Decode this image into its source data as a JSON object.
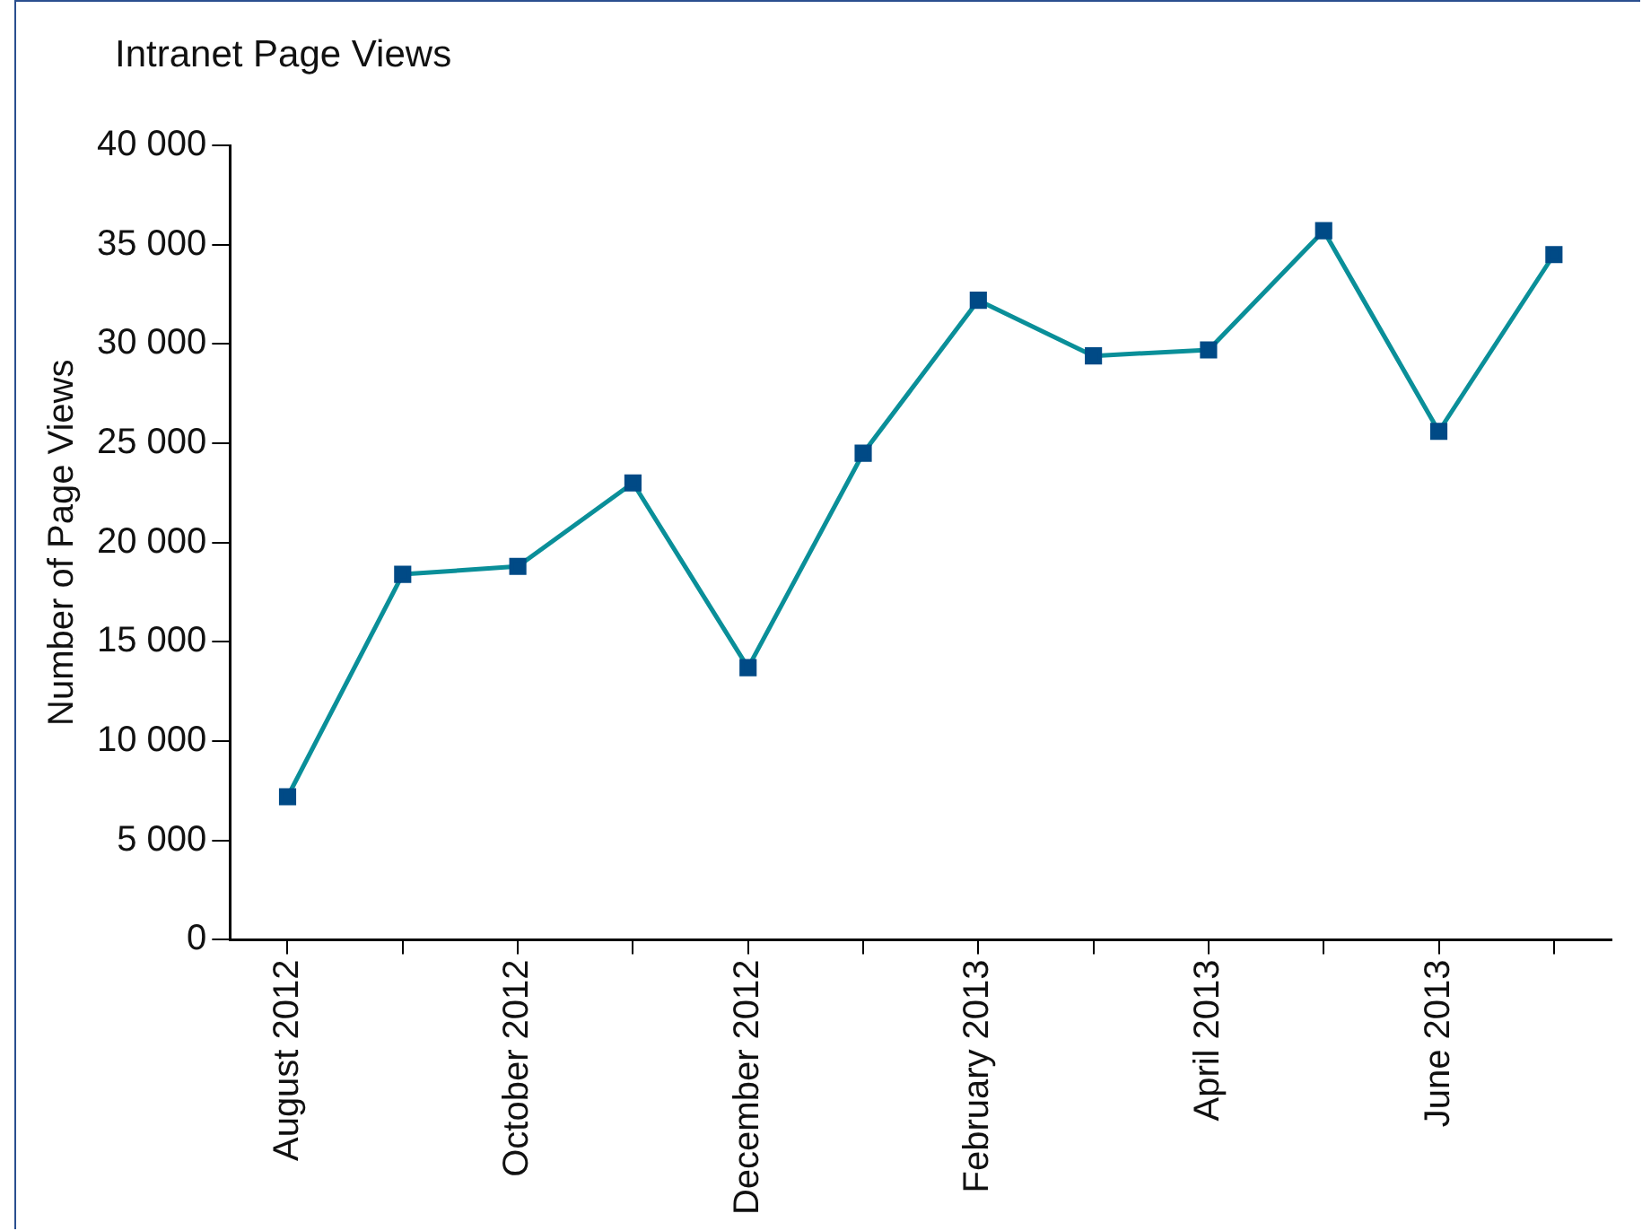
{
  "chart_data": {
    "type": "line",
    "title": "Intranet Page Views",
    "ylabel": "Number of Page Views",
    "categories": [
      "August 2012",
      null,
      "October 2012",
      null,
      "December 2012",
      null,
      "February 2013",
      null,
      "April 2013",
      null,
      "June 2013",
      null
    ],
    "series": [
      {
        "color": "#0a8f99",
        "values": [
          7200,
          18400,
          18800,
          23000,
          13700,
          24500,
          32200,
          29400,
          29700,
          35700,
          25600,
          34500
        ]
      }
    ],
    "ylim": [
      0,
      40000
    ],
    "yticks": [
      0,
      {
        "value": 5000,
        "label": "5 000"
      },
      {
        "value": 10000,
        "label": "10 000"
      },
      {
        "value": 15000,
        "label": "15 000"
      },
      {
        "value": 20000,
        "label": "20 000"
      },
      {
        "value": 25000,
        "label": "25 000"
      },
      {
        "value": 30000,
        "label": "30 000"
      },
      {
        "value": 35000,
        "label": "35 000"
      },
      {
        "value": 40000,
        "label": "40 000"
      }
    ],
    "grid": false,
    "legend": false,
    "marker": "square",
    "line_style": "solid"
  }
}
